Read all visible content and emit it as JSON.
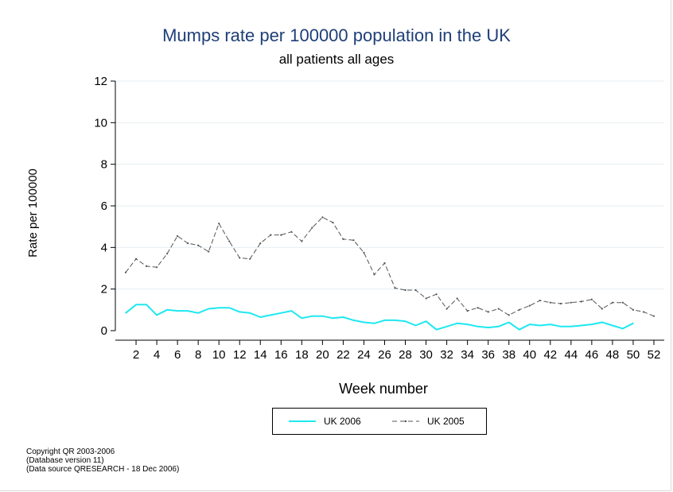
{
  "chart_data": {
    "type": "line",
    "title": "Mumps rate per 100000 population in the UK",
    "subtitle": "all patients all ages",
    "xlabel": "Week number",
    "ylabel": "Rate per 100000",
    "xlim": [
      0,
      53
    ],
    "ylim": [
      0,
      12
    ],
    "x_ticks": [
      2,
      4,
      6,
      8,
      10,
      12,
      14,
      16,
      18,
      20,
      22,
      24,
      26,
      28,
      30,
      32,
      34,
      36,
      38,
      40,
      42,
      44,
      46,
      48,
      50,
      52
    ],
    "y_ticks": [
      0,
      2,
      4,
      6,
      8,
      10,
      12
    ],
    "grid": "horizontal",
    "legend_position": "bottom",
    "series": [
      {
        "name": "UK  2006",
        "color": "#1ee8f0",
        "style": "solid",
        "x": [
          1,
          2,
          3,
          4,
          5,
          6,
          7,
          8,
          9,
          10,
          11,
          12,
          13,
          14,
          15,
          16,
          17,
          18,
          19,
          20,
          21,
          22,
          23,
          24,
          25,
          26,
          27,
          28,
          29,
          30,
          31,
          32,
          33,
          34,
          35,
          36,
          37,
          38,
          39,
          40,
          41,
          42,
          43,
          44,
          45,
          46,
          47,
          48,
          49,
          50
        ],
        "values": [
          0.85,
          1.25,
          1.25,
          0.75,
          1.0,
          0.95,
          0.95,
          0.85,
          1.05,
          1.1,
          1.1,
          0.9,
          0.85,
          0.65,
          0.75,
          0.85,
          0.95,
          0.6,
          0.7,
          0.7,
          0.6,
          0.65,
          0.5,
          0.4,
          0.35,
          0.5,
          0.5,
          0.45,
          0.25,
          0.45,
          0.05,
          0.2,
          0.35,
          0.3,
          0.2,
          0.15,
          0.2,
          0.4,
          0.05,
          0.3,
          0.25,
          0.3,
          0.2,
          0.2,
          0.25,
          0.3,
          0.4,
          0.25,
          0.1,
          0.35
        ]
      },
      {
        "name": "UK  2005",
        "color": "#555555",
        "style": "dashed",
        "x": [
          1,
          2,
          3,
          4,
          5,
          6,
          7,
          8,
          9,
          10,
          11,
          12,
          13,
          14,
          15,
          16,
          17,
          18,
          19,
          20,
          21,
          22,
          23,
          24,
          25,
          26,
          27,
          28,
          29,
          30,
          31,
          32,
          33,
          34,
          35,
          36,
          37,
          38,
          39,
          40,
          41,
          42,
          43,
          44,
          45,
          46,
          47,
          48,
          49,
          50,
          51,
          52
        ],
        "values": [
          2.8,
          3.45,
          3.1,
          3.05,
          3.7,
          4.55,
          4.2,
          4.1,
          3.8,
          5.15,
          4.3,
          3.5,
          3.45,
          4.2,
          4.6,
          4.6,
          4.75,
          4.3,
          4.95,
          5.45,
          5.2,
          4.4,
          4.35,
          3.75,
          2.7,
          3.25,
          2.05,
          1.95,
          1.95,
          1.55,
          1.75,
          1.05,
          1.55,
          0.95,
          1.1,
          0.9,
          1.05,
          0.75,
          1.0,
          1.2,
          1.45,
          1.35,
          1.3,
          1.35,
          1.4,
          1.5,
          1.05,
          1.35,
          1.35,
          1.0,
          0.9,
          0.7
        ]
      }
    ]
  },
  "footer": {
    "line1": "Copyright QR 2003-2006",
    "line2": "(Database version 11)",
    "line3": "(Data source QRESEARCH - 18 Dec 2006)"
  }
}
